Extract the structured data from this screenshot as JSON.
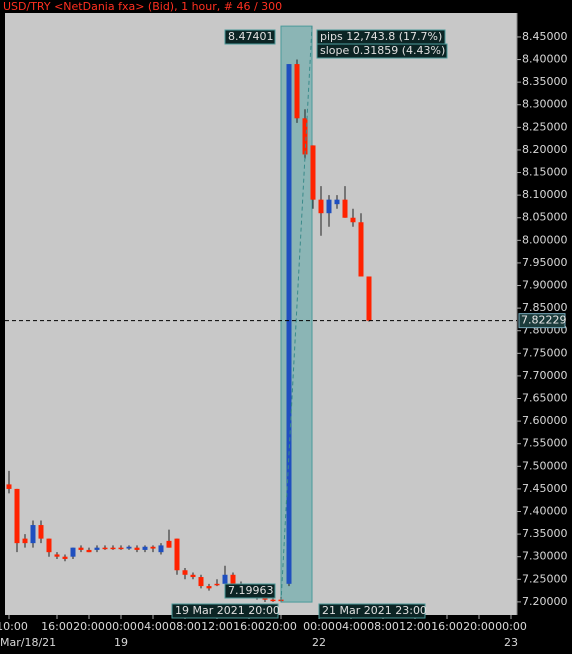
{
  "chart_data": {
    "type": "candlestick",
    "title": "USD/TRY <NetDania fxa> (Bid), 1 hour, # 46 / 300",
    "up_color": "#1f4fbf",
    "down_color": "#ff2200",
    "open": [
      7.46,
      7.45,
      7.34,
      7.33,
      7.37,
      7.34,
      7.305,
      7.3,
      7.3,
      7.32,
      7.315,
      7.315,
      7.32,
      7.32,
      7.32,
      7.318,
      7.32,
      7.315,
      7.322,
      7.31,
      7.335,
      7.34,
      7.27,
      7.26,
      7.255,
      7.235,
      7.24,
      7.24,
      7.26,
      7.24,
      7.23,
      7.22,
      7.21,
      7.205,
      7.205,
      7.24,
      8.39,
      8.27,
      8.21,
      8.09,
      8.06,
      8.08,
      8.09,
      8.05,
      8.04,
      7.92
    ],
    "high": [
      7.49,
      7.45,
      7.35,
      7.38,
      7.38,
      7.34,
      7.31,
      7.305,
      7.32,
      7.325,
      7.32,
      7.325,
      7.325,
      7.325,
      7.325,
      7.325,
      7.325,
      7.325,
      7.325,
      7.33,
      7.36,
      7.34,
      7.275,
      7.265,
      7.26,
      7.24,
      7.25,
      7.28,
      7.265,
      7.245,
      7.235,
      7.225,
      7.215,
      7.21,
      7.21,
      8.39,
      8.4,
      8.29,
      8.21,
      8.12,
      8.1,
      8.1,
      8.12,
      8.07,
      8.06,
      7.92
    ],
    "low": [
      7.44,
      7.31,
      7.32,
      7.32,
      7.33,
      7.3,
      7.295,
      7.29,
      7.295,
      7.31,
      7.31,
      7.31,
      7.315,
      7.315,
      7.315,
      7.315,
      7.31,
      7.31,
      7.31,
      7.305,
      7.32,
      7.26,
      7.25,
      7.25,
      7.23,
      7.225,
      7.235,
      7.235,
      7.235,
      7.225,
      7.215,
      7.205,
      7.19963,
      7.2,
      7.2,
      7.235,
      8.26,
      8.18,
      8.07,
      8.01,
      8.03,
      8.07,
      8.05,
      8.03,
      7.92,
      7.82
    ],
    "close": [
      7.45,
      7.33,
      7.33,
      7.37,
      7.34,
      7.31,
      7.3,
      7.295,
      7.32,
      7.315,
      7.31,
      7.32,
      7.318,
      7.318,
      7.317,
      7.322,
      7.315,
      7.322,
      7.318,
      7.325,
      7.32,
      7.27,
      7.26,
      7.255,
      7.235,
      7.23,
      7.238,
      7.26,
      7.24,
      7.23,
      7.22,
      7.21,
      7.205,
      7.202,
      7.203,
      8.39,
      8.27,
      8.19,
      8.09,
      8.06,
      8.09,
      8.09,
      8.05,
      8.04,
      7.92,
      7.82229
    ],
    "ylim": [
      7.171,
      8.503
    ],
    "yticks": [
      {
        "value": 8.45,
        "label": "8.45000"
      },
      {
        "value": 8.4,
        "label": "8.40000"
      },
      {
        "value": 8.35,
        "label": "8.35000"
      },
      {
        "value": 8.3,
        "label": "8.30000"
      },
      {
        "value": 8.25,
        "label": "8.25000"
      },
      {
        "value": 8.2,
        "label": "8.20000"
      },
      {
        "value": 8.15,
        "label": "8.15000"
      },
      {
        "value": 8.1,
        "label": "8.10000"
      },
      {
        "value": 8.05,
        "label": "8.05000"
      },
      {
        "value": 8.0,
        "label": "8.00000"
      },
      {
        "value": 7.95,
        "label": "7.95000"
      },
      {
        "value": 7.9,
        "label": "7.90000"
      },
      {
        "value": 7.85,
        "label": "7.85000"
      },
      {
        "value": 7.8,
        "label": "7.80000"
      },
      {
        "value": 7.75,
        "label": "7.75000"
      },
      {
        "value": 7.7,
        "label": "7.70000"
      },
      {
        "value": 7.65,
        "label": "7.65000"
      },
      {
        "value": 7.6,
        "label": "7.60000"
      },
      {
        "value": 7.55,
        "label": "7.55000"
      },
      {
        "value": 7.5,
        "label": "7.50000"
      },
      {
        "value": 7.45,
        "label": "7.45000"
      },
      {
        "value": 7.4,
        "label": "7.40000"
      },
      {
        "value": 7.35,
        "label": "7.35000"
      },
      {
        "value": 7.3,
        "label": "7.30000"
      },
      {
        "value": 7.25,
        "label": "7.25000"
      },
      {
        "value": 7.2,
        "label": "7.20000"
      }
    ],
    "xticks": [
      {
        "value": 0,
        "label": "10:00"
      },
      {
        "value": 6,
        "label": "16:00"
      },
      {
        "value": 10,
        "label": "20:00"
      },
      {
        "value": 14,
        "label": "00:00"
      },
      {
        "value": 18,
        "label": "04:00"
      },
      {
        "value": 22,
        "label": "08:00"
      },
      {
        "value": 26,
        "label": "12:00"
      },
      {
        "value": 30,
        "label": "16:00"
      },
      {
        "value": 34,
        "label": "20:00"
      },
      {
        "value": 38.75,
        "label": "00:00"
      },
      {
        "value": 42.75,
        "label": "04:00"
      },
      {
        "value": 46.75,
        "label": "08:00"
      },
      {
        "value": 50.75,
        "label": "12:00"
      },
      {
        "value": 54.75,
        "label": "16:00"
      },
      {
        "value": 58.75,
        "label": "20:00"
      },
      {
        "value": 62.75,
        "label": "00:00"
      }
    ],
    "xdates": [
      {
        "value": 0,
        "label": "Mar/18/21"
      },
      {
        "value": 14,
        "label": "19"
      },
      {
        "value": 38.75,
        "label": "22"
      },
      {
        "value": 62.75,
        "label": "23"
      }
    ],
    "current": 7.82229,
    "measure": {
      "high": 8.47401,
      "low": 7.19963,
      "pips": "pips 12,743.8 (17.7%)",
      "slope": "slope 0.31859 (4.43%)",
      "start": "19 Mar 2021 20:00",
      "end": "21 Mar 2021 23:00"
    }
  }
}
